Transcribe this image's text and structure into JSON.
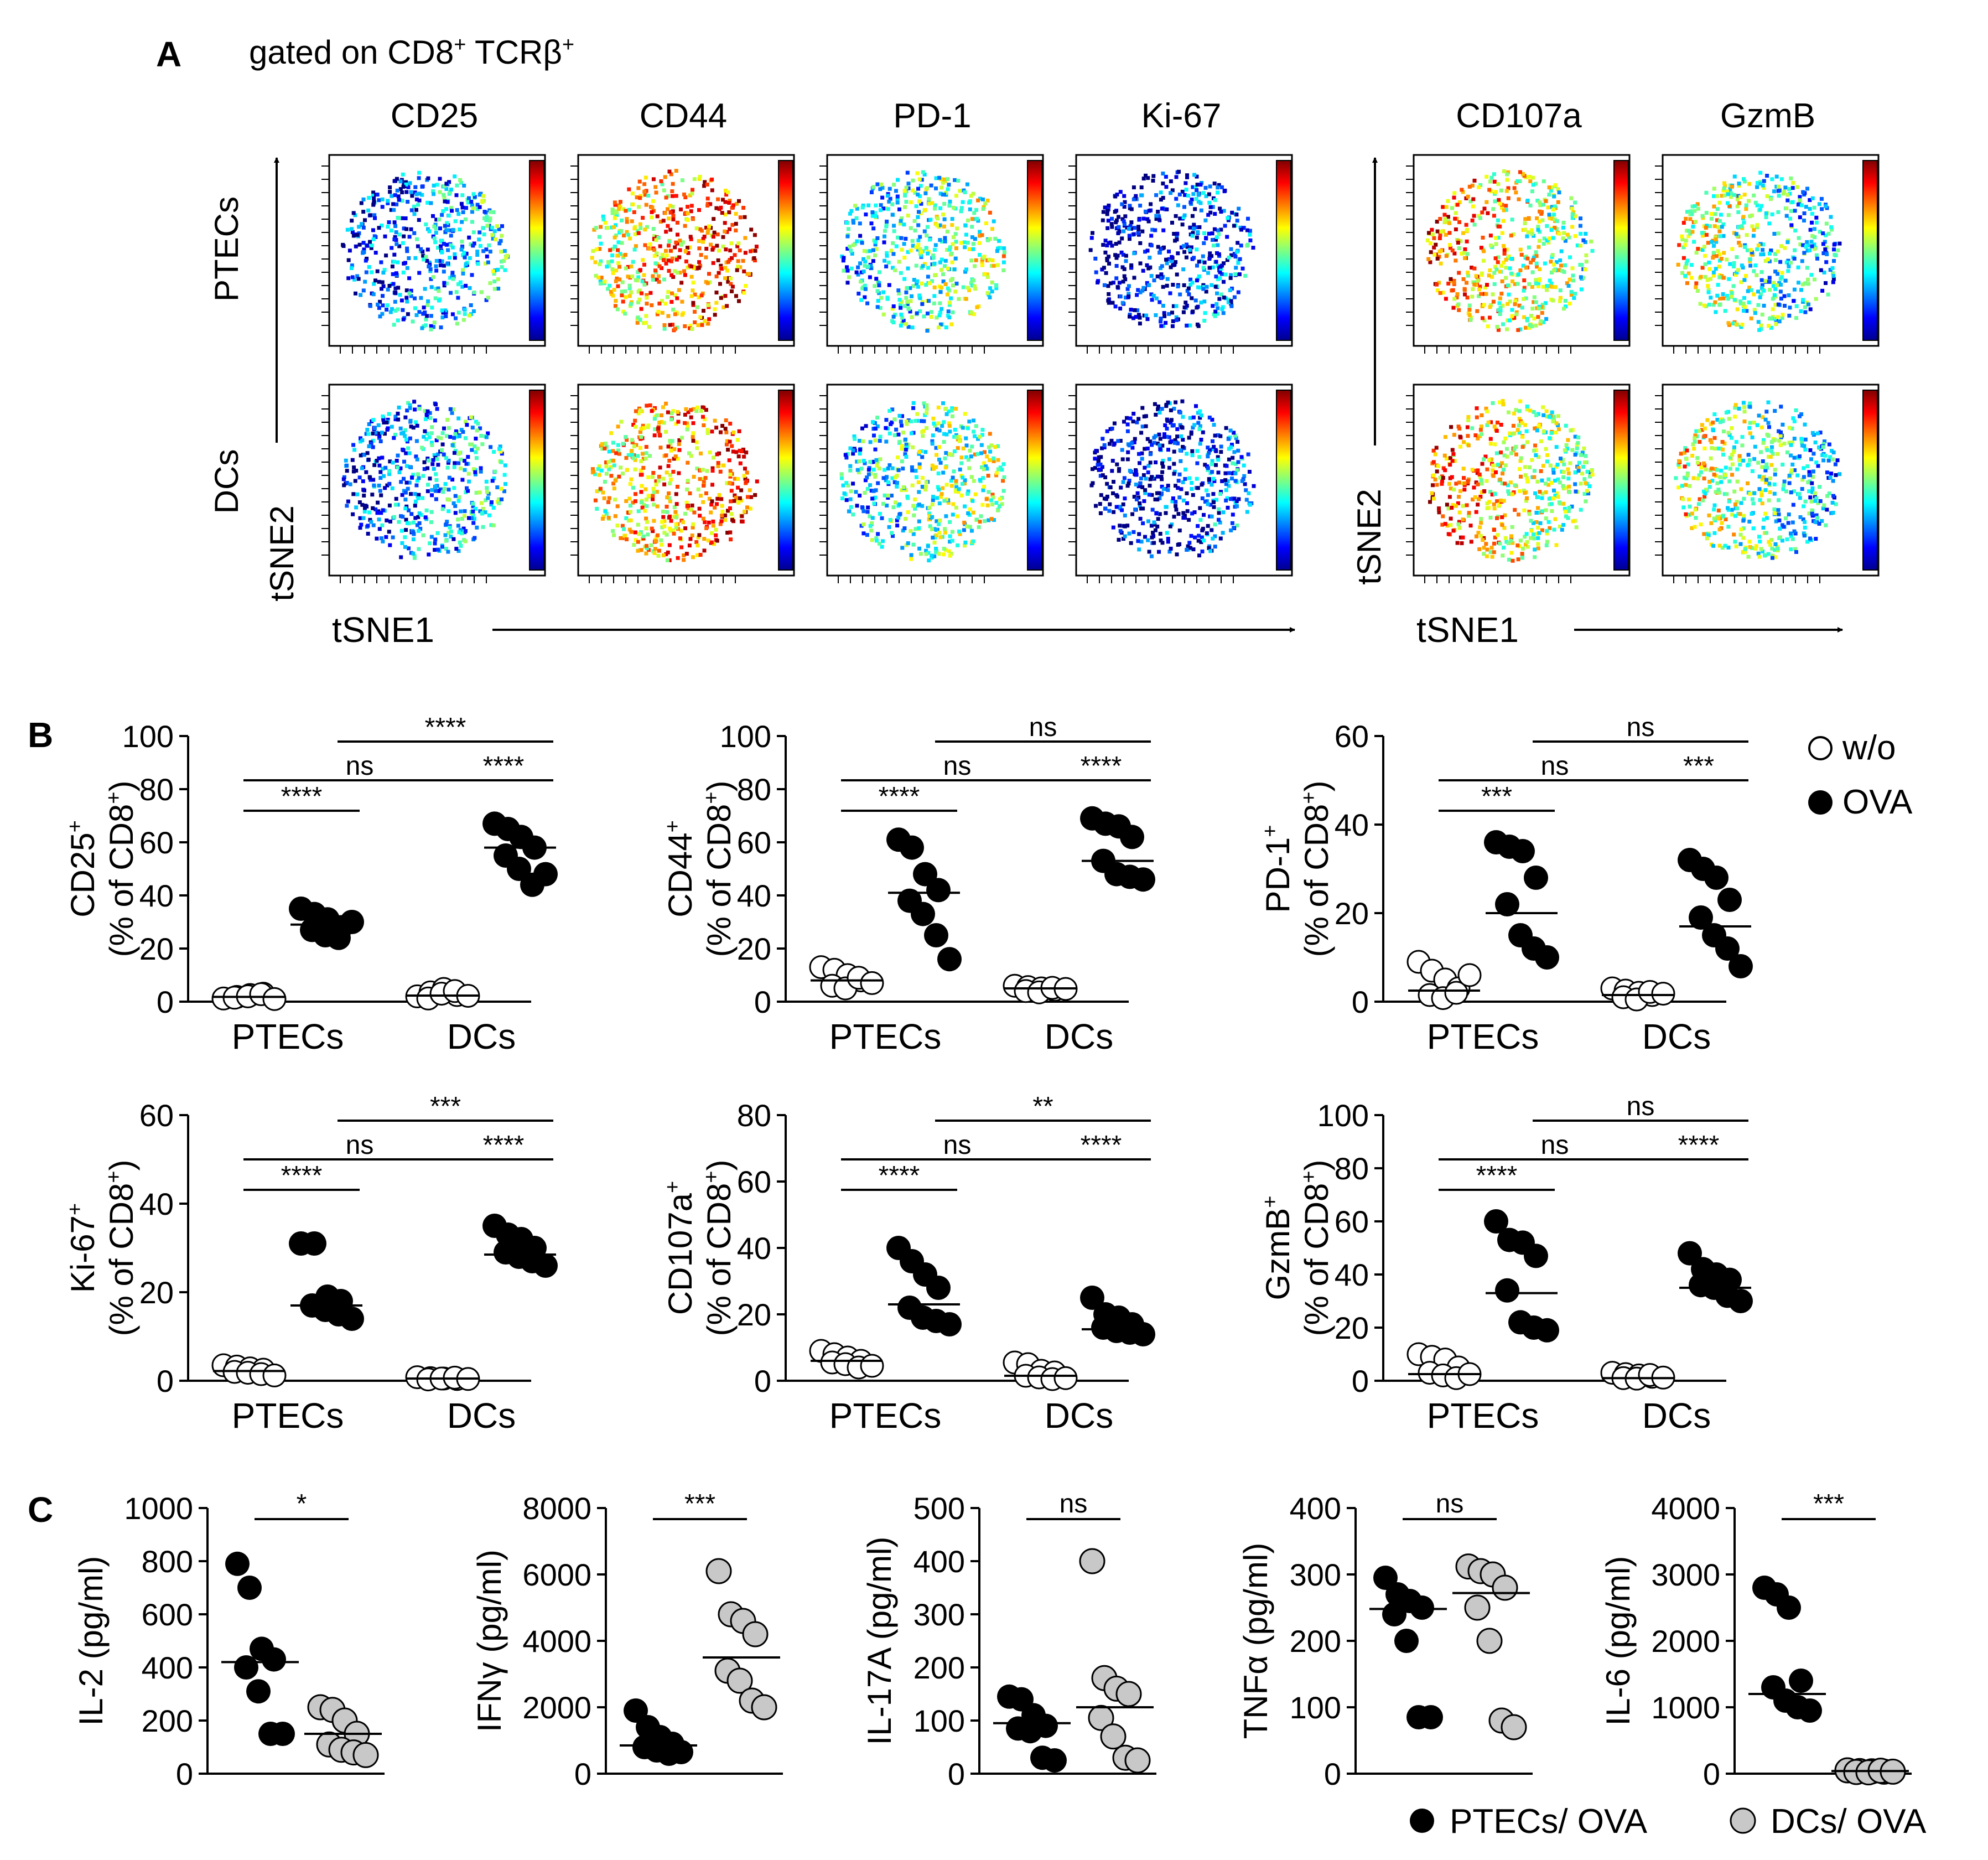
{
  "chart_data": {
    "type": "scatter",
    "panels": {
      "A": {
        "letter": "A",
        "gate_text": "gated on CD8",
        "gate_sup1": "+",
        "gate_text2": " TCRβ",
        "gate_sup2": "+",
        "row_labels": [
          "PTECs",
          "DCs"
        ],
        "ylabel": "tSNE2",
        "xlabel": "tSNE1",
        "group1_markers": [
          "CD25",
          "CD44",
          "PD-1",
          "Ki-67"
        ],
        "group2_markers": [
          "CD107a",
          "GzmB"
        ]
      },
      "B": {
        "letter": "B",
        "categories": [
          "PTECs",
          "DCs"
        ],
        "legend": [
          "w/o",
          "OVA"
        ],
        "ylabel_sub": "(% of CD8",
        "ylabel_sub_sup": "+",
        "ylabel_sub_end": ")",
        "plots": [
          {
            "marker": "CD25",
            "sup": "+",
            "ylim": [
              0,
              100
            ],
            "ticks": [
              0,
              20,
              40,
              60,
              80,
              100
            ],
            "groups": [
              {
                "values": [
                  1.2,
                  1.8,
                  2.5,
                  3.0,
                  1.5,
                  2.0,
                  2.8,
                  1.0
                ],
                "median": 1.8
              },
              {
                "values": [
                  35,
                  33,
                  31,
                  28,
                  27,
                  25,
                  24,
                  30
                ],
                "median": 29
              },
              {
                "values": [
                  2.0,
                  3.5,
                  4.8,
                  2.5,
                  1.2,
                  3.0,
                  4.0,
                  2.2
                ],
                "median": 2.3
              },
              {
                "values": [
                  67,
                  65,
                  62,
                  58,
                  55,
                  50,
                  44,
                  48
                ],
                "median": 58
              }
            ],
            "sig": [
              "****",
              "ns",
              "****",
              "****"
            ]
          },
          {
            "marker": "CD44",
            "sup": "+",
            "ylim": [
              0,
              100
            ],
            "ticks": [
              0,
              20,
              40,
              60,
              80,
              100
            ],
            "groups": [
              {
                "values": [
                  13,
                  12,
                  10,
                  8,
                  6,
                  5,
                  9,
                  7
                ],
                "median": 8
              },
              {
                "values": [
                  61,
                  58,
                  48,
                  42,
                  38,
                  33,
                  25,
                  16
                ],
                "median": 41
              },
              {
                "values": [
                  6,
                  5.5,
                  5,
                  4.5,
                  4,
                  3.5,
                  5.2,
                  4.8
                ],
                "median": 5
              },
              {
                "values": [
                  69,
                  67,
                  66,
                  62,
                  53,
                  48,
                  47,
                  46
                ],
                "median": 53
              }
            ],
            "sig": [
              "****",
              "ns",
              "****",
              "ns"
            ]
          },
          {
            "marker": "PD-1",
            "sup": "+",
            "ylim": [
              0,
              60
            ],
            "ticks": [
              0,
              20,
              40,
              60
            ],
            "groups": [
              {
                "values": [
                  9,
                  7,
                  5,
                  3,
                  1.5,
                  0.8,
                  2,
                  6
                ],
                "median": 2.5
              },
              {
                "values": [
                  36,
                  35,
                  34,
                  28,
                  22,
                  15,
                  12,
                  10
                ],
                "median": 20
              },
              {
                "values": [
                  3,
                  2.5,
                  2,
                  1.5,
                  1,
                  0.5,
                  2.2,
                  1.8
                ],
                "median": 1.5
              },
              {
                "values": [
                  32,
                  30,
                  28,
                  23,
                  19,
                  15,
                  12,
                  8
                ],
                "median": 17
              }
            ],
            "sig": [
              "***",
              "ns",
              "***",
              "ns"
            ]
          }
        ],
        "plots_row2": [
          {
            "marker": "Ki-67",
            "sup": "+",
            "ylim": [
              0,
              60
            ],
            "ticks": [
              0,
              20,
              40,
              60
            ],
            "groups": [
              {
                "values": [
                  3.5,
                  3.2,
                  2.8,
                  2.5,
                  2.0,
                  1.8,
                  1.5,
                  1.2
                ],
                "median": 2.2
              },
              {
                "values": [
                  31,
                  31,
                  19,
                  18,
                  17,
                  16,
                  15,
                  14
                ],
                "median": 17
              },
              {
                "values": [
                  0.8,
                  0.6,
                  0.5,
                  0.4,
                  0.3,
                  0.5,
                  0.7,
                  0.4
                ],
                "median": 0.5
              },
              {
                "values": [
                  35,
                  33,
                  32,
                  30,
                  29,
                  28,
                  27,
                  26
                ],
                "median": 28.5
              }
            ],
            "sig": [
              "****",
              "ns",
              "****",
              "***"
            ]
          },
          {
            "marker": "CD107a",
            "sup": "+",
            "ylim": [
              0,
              80
            ],
            "ticks": [
              0,
              20,
              40,
              60,
              80
            ],
            "groups": [
              {
                "values": [
                  9,
                  8,
                  7,
                  6,
                  5.5,
                  5,
                  4,
                  4.5
                ],
                "median": 6
              },
              {
                "values": [
                  40,
                  36,
                  32,
                  28,
                  22,
                  19,
                  18,
                  17
                ],
                "median": 23
              },
              {
                "values": [
                  5.5,
                  5,
                  3,
                  2.5,
                  1.5,
                  1,
                  0.5,
                  0.8
                ],
                "median": 1.5
              },
              {
                "values": [
                  25,
                  20,
                  19,
                  17,
                  16,
                  15,
                  14.5,
                  14
                ],
                "median": 15.5
              }
            ],
            "sig": [
              "****",
              "ns",
              "****",
              "**"
            ]
          },
          {
            "marker": "GzmB",
            "sup": "+",
            "ylim": [
              0,
              100
            ],
            "ticks": [
              0,
              20,
              40,
              60,
              80,
              100
            ],
            "groups": [
              {
                "values": [
                  10,
                  9,
                  8,
                  5,
                  3,
                  2,
                  1,
                  2.5
                ],
                "median": 2.5
              },
              {
                "values": [
                  60,
                  53,
                  52,
                  47,
                  34,
                  22,
                  20,
                  19
                ],
                "median": 33
              },
              {
                "values": [
                  3,
                  2.5,
                  2,
                  1.5,
                  1,
                  0.8,
                  2.2,
                  1.2
                ],
                "median": 1
              },
              {
                "values": [
                  48,
                  42,
                  40,
                  38,
                  36,
                  35,
                  32,
                  30
                ],
                "median": 35
              }
            ],
            "sig": [
              "****",
              "ns",
              "****",
              "ns"
            ]
          }
        ]
      },
      "C": {
        "letter": "C",
        "legend": [
          "PTECs/ OVA",
          "DCs/ OVA"
        ],
        "unit": "(pg/ml)",
        "plots": [
          {
            "cytokine": "IL-2",
            "ylim": [
              0,
              1000
            ],
            "ticks": [
              0,
              200,
              400,
              600,
              800,
              1000
            ],
            "groups": [
              {
                "values": [
                  790,
                  700,
                  470,
                  430,
                  400,
                  310,
                  150,
                  150
                ],
                "median": 420
              },
              {
                "values": [
                  250,
                  240,
                  200,
                  150,
                  110,
                  90,
                  80,
                  70
                ],
                "median": 150
              }
            ],
            "sig": "*"
          },
          {
            "cytokine": "IFN",
            "cytokine_sym": "γ",
            "ylim": [
              0,
              8000
            ],
            "ticks": [
              0,
              2000,
              4000,
              6000,
              8000
            ],
            "groups": [
              {
                "values": [
                  1900,
                  1400,
                  1100,
                  900,
                  800,
                  700,
                  600,
                  650
                ],
                "median": 850
              },
              {
                "values": [
                  6100,
                  4800,
                  4600,
                  4200,
                  3100,
                  2800,
                  2200,
                  2000
                ],
                "median": 3500
              }
            ],
            "sig": "***"
          },
          {
            "cytokine": "IL-17A",
            "ylim": [
              0,
              500
            ],
            "ticks": [
              0,
              100,
              200,
              300,
              400,
              500
            ],
            "groups": [
              {
                "values": [
                  145,
                  140,
                  110,
                  90,
                  85,
                  80,
                  30,
                  25
                ],
                "median": 95
              },
              {
                "values": [
                  400,
                  180,
                  160,
                  150,
                  105,
                  70,
                  30,
                  25
                ],
                "median": 125
              }
            ],
            "sig": "ns"
          },
          {
            "cytokine": "TNF",
            "cytokine_sym": "α",
            "ylim": [
              0,
              400
            ],
            "ticks": [
              0,
              100,
              200,
              300,
              400
            ],
            "groups": [
              {
                "values": [
                  295,
                  270,
                  260,
                  250,
                  240,
                  200,
                  85,
                  85
                ],
                "median": 248
              },
              {
                "values": [
                  312,
                  305,
                  300,
                  280,
                  250,
                  200,
                  80,
                  70
                ],
                "median": 272
              }
            ],
            "sig": "ns"
          },
          {
            "cytokine": "IL-6",
            "ylim": [
              0,
              4000
            ],
            "ticks": [
              0,
              1000,
              2000,
              3000,
              4000
            ],
            "groups": [
              {
                "values": [
                  2800,
                  2700,
                  2500,
                  1400,
                  1300,
                  1100,
                  1000,
                  950
                ],
                "median": 1200
              },
              {
                "values": [
                  50,
                  40,
                  35,
                  30,
                  25,
                  20,
                  45,
                  30
                ],
                "median": 40
              }
            ],
            "sig": "***"
          }
        ]
      }
    }
  },
  "colors": {
    "black": "#000000",
    "gray_fill": "#c8c8c8",
    "white_fill": "#ffffff"
  }
}
